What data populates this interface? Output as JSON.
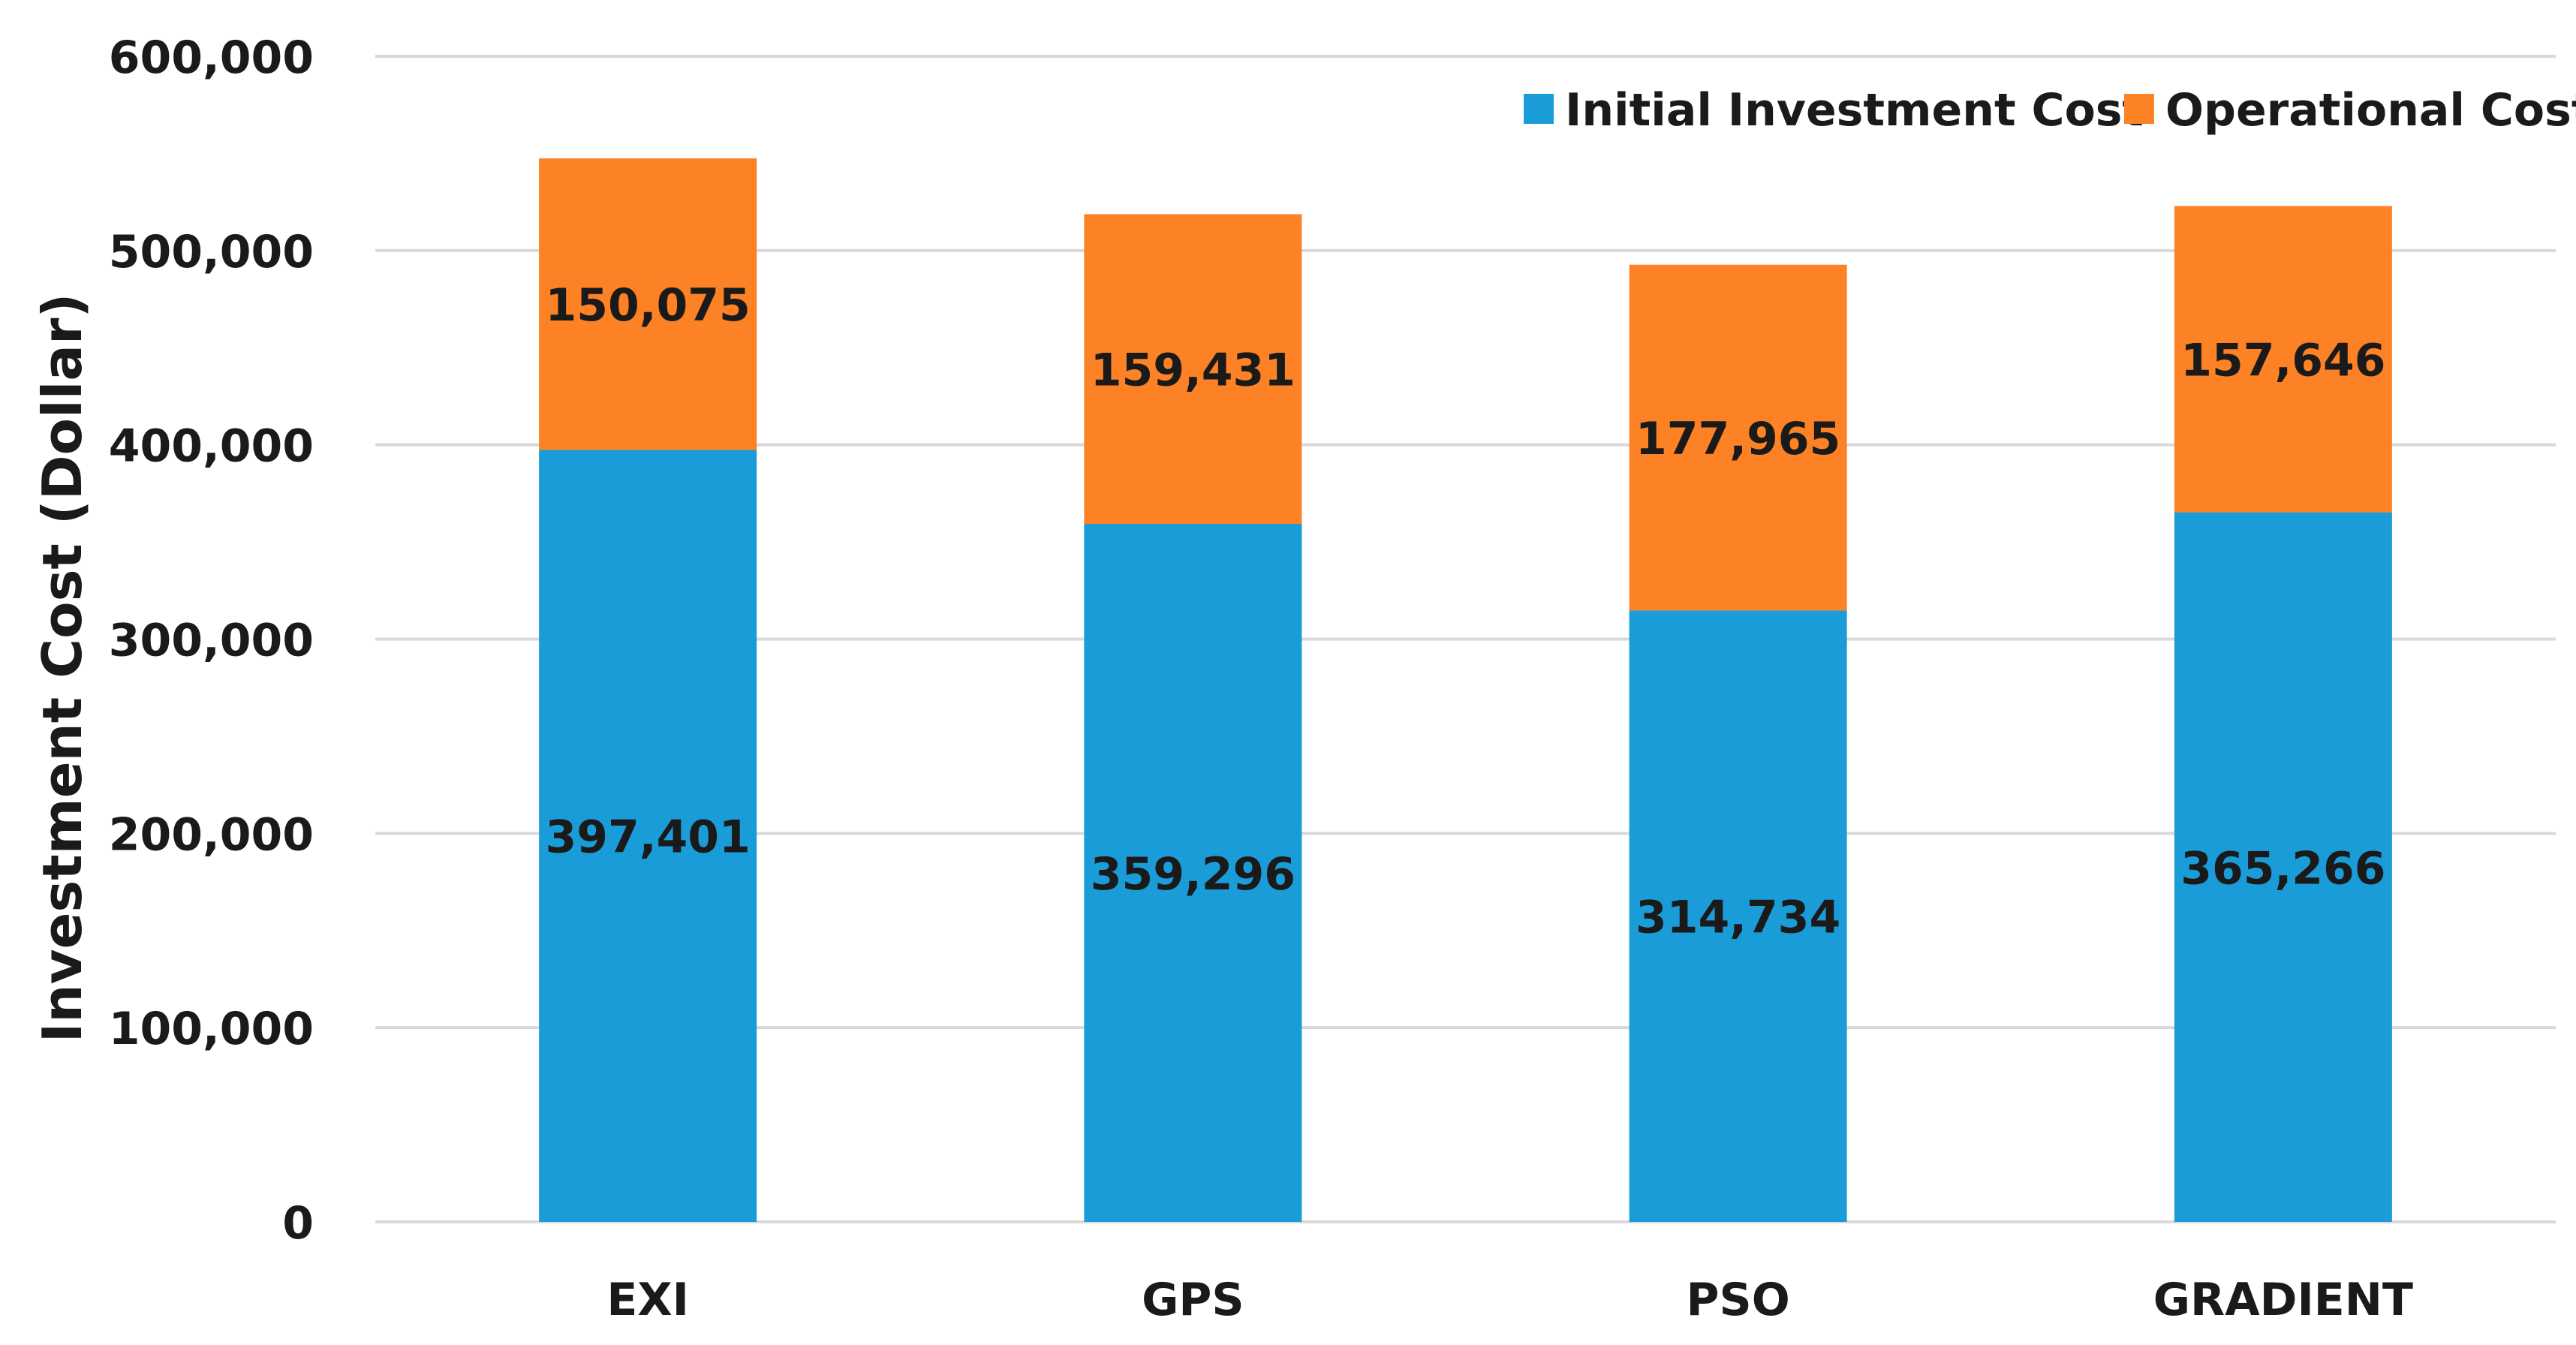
{
  "chart_data": {
    "type": "bar",
    "stacked": true,
    "title": "",
    "xlabel": "",
    "ylabel": "Investment Cost (Dollar)",
    "ylim": [
      0,
      600000
    ],
    "yticks": [
      0,
      100000,
      200000,
      300000,
      400000,
      500000,
      600000
    ],
    "ytick_labels": [
      "0",
      "100,000",
      "200,000",
      "300,000",
      "400,000",
      "500,000",
      "600,000"
    ],
    "grid": true,
    "legend_position": "top-right",
    "categories": [
      "EXI",
      "GPS",
      "PSO",
      "GRADIENT"
    ],
    "series": [
      {
        "name": "Initial Investment Cost",
        "color": "#1a9cd8",
        "values": [
          397401,
          359296,
          314734,
          365266
        ],
        "labels": [
          "397,401",
          "359,296",
          "314,734",
          "365,266"
        ]
      },
      {
        "name": "Operational Cost",
        "color": "#fd8125",
        "values": [
          150075,
          159431,
          177965,
          157646
        ],
        "labels": [
          "150,075",
          "159,431",
          "177,965",
          "157,646"
        ]
      }
    ]
  }
}
